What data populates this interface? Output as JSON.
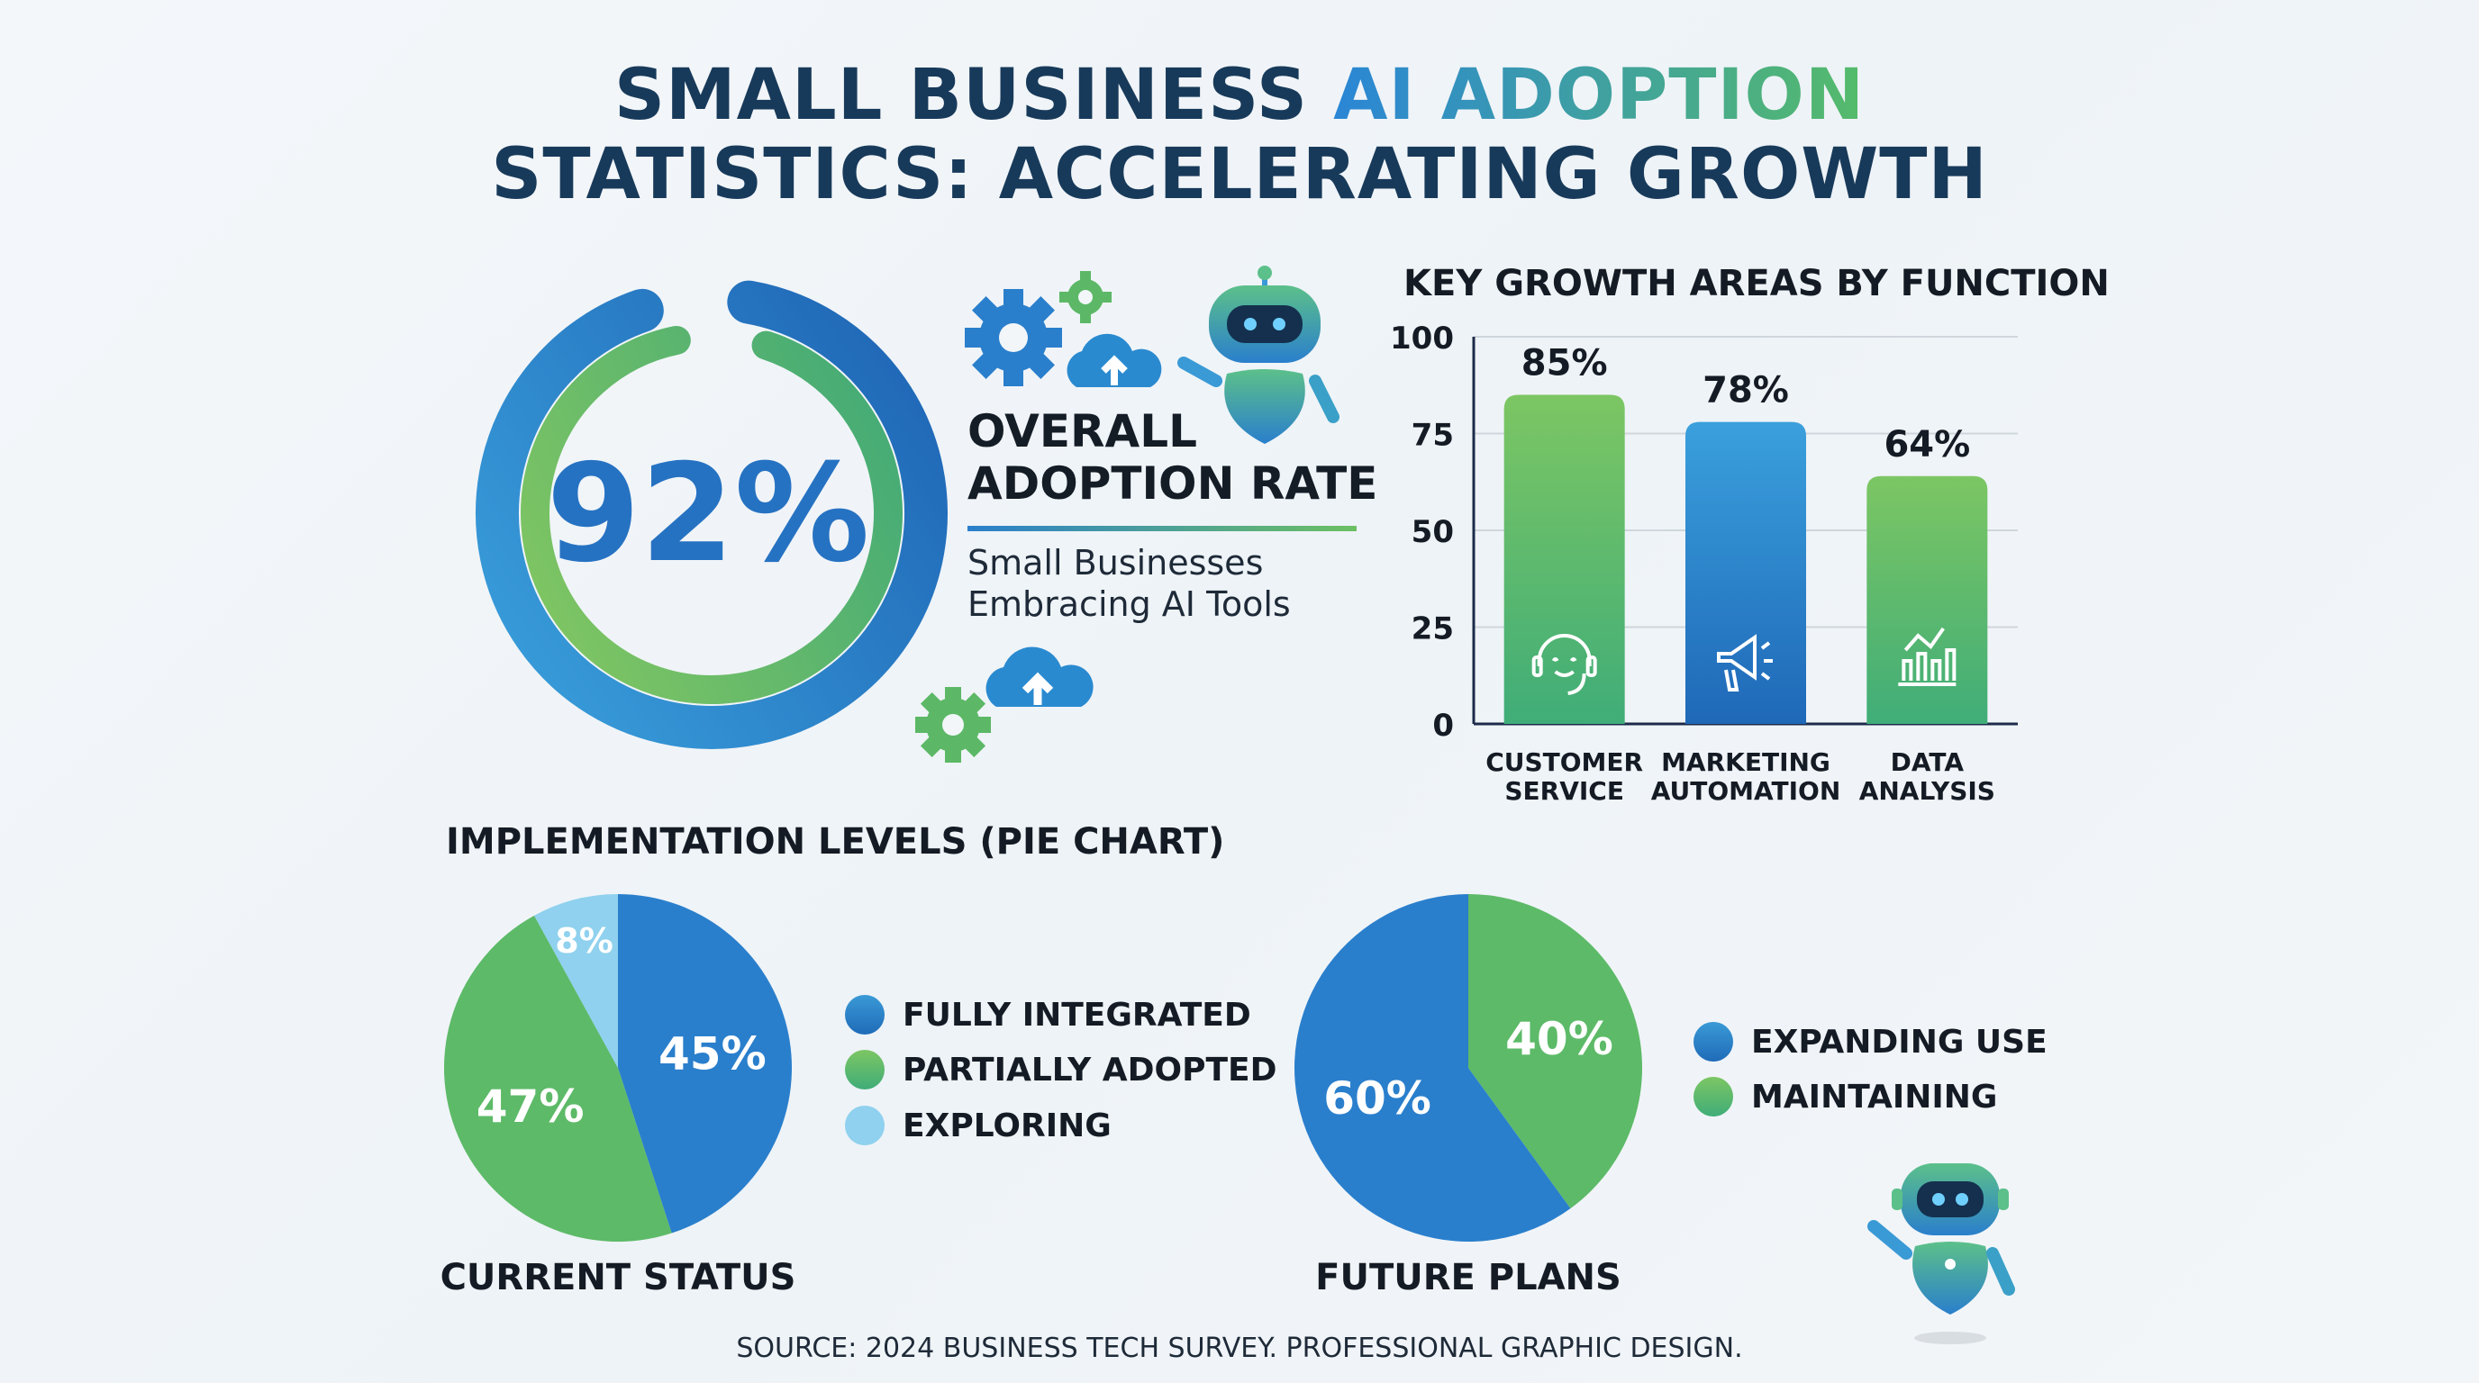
{
  "title": {
    "line1_pre": "SMALL BUSINESS ",
    "line1_highlight": "AI ADOPTION",
    "line2": "STATISTICS: ACCELERATING GROWTH"
  },
  "overall": {
    "value_label": "92%",
    "value": 92,
    "heading_line1": "OVERALL",
    "heading_line2": "ADOPTION RATE",
    "sub_line1": "Small Businesses",
    "sub_line2": "Embracing AI Tools"
  },
  "colors": {
    "navy": "#183a5a",
    "blue": "#2e86d0",
    "dark_blue": "#1f6bb8",
    "green": "#6cc062",
    "green_dark": "#45ad72",
    "light_blue": "#8fd1ee"
  },
  "icons": [
    "gear-icon",
    "cloud-upload-icon",
    "robot-icon",
    "headset-icon",
    "megaphone-icon",
    "bar-line-chart-icon"
  ],
  "implementation_title": "IMPLEMENTATION LEVELS (PIE CHART)",
  "chart_data": [
    {
      "type": "bar",
      "title": "KEY GROWTH AREAS BY FUNCTION",
      "categories": [
        "CUSTOMER SERVICE",
        "MARKETING AUTOMATION",
        "DATA ANALYSIS"
      ],
      "category_lines": [
        [
          "CUSTOMER",
          "SERVICE"
        ],
        [
          "MARKETING",
          "AUTOMATION"
        ],
        [
          "DATA",
          "ANALYSIS"
        ]
      ],
      "values": [
        85,
        78,
        64
      ],
      "data_labels": [
        "85%",
        "78%",
        "64%"
      ],
      "bar_colors": [
        "green",
        "blue",
        "green"
      ],
      "ylim": [
        0,
        100
      ],
      "yticks": [
        "0",
        "25",
        "50",
        "75",
        "100"
      ],
      "grid": true,
      "xlabel": "",
      "ylabel": ""
    },
    {
      "type": "pie",
      "title": "CURRENT STATUS",
      "categories": [
        "FULLY INTEGRATED",
        "PARTIALLY ADOPTED",
        "EXPLORING"
      ],
      "values": [
        45,
        47,
        8
      ],
      "data_labels": [
        "45%",
        "47%",
        "8%"
      ],
      "colors": [
        "#2a7fcc",
        "#5dba68",
        "#8fd1ee"
      ],
      "legend": "right"
    },
    {
      "type": "pie",
      "title": "FUTURE PLANS",
      "categories": [
        "MAINTAINING",
        "EXPANDING USE"
      ],
      "values": [
        40,
        60
      ],
      "data_labels": [
        "40%",
        "60%"
      ],
      "colors": [
        "#5dba68",
        "#2a7fcc"
      ],
      "legend_order": [
        "EXPANDING USE",
        "MAINTAINING"
      ],
      "legend": "right"
    }
  ],
  "legend2": [
    "EXPANDING USE",
    "MAINTAINING"
  ],
  "source": "SOURCE: 2024 BUSINESS TECH SURVEY. PROFESSIONAL GRAPHIC DESIGN."
}
